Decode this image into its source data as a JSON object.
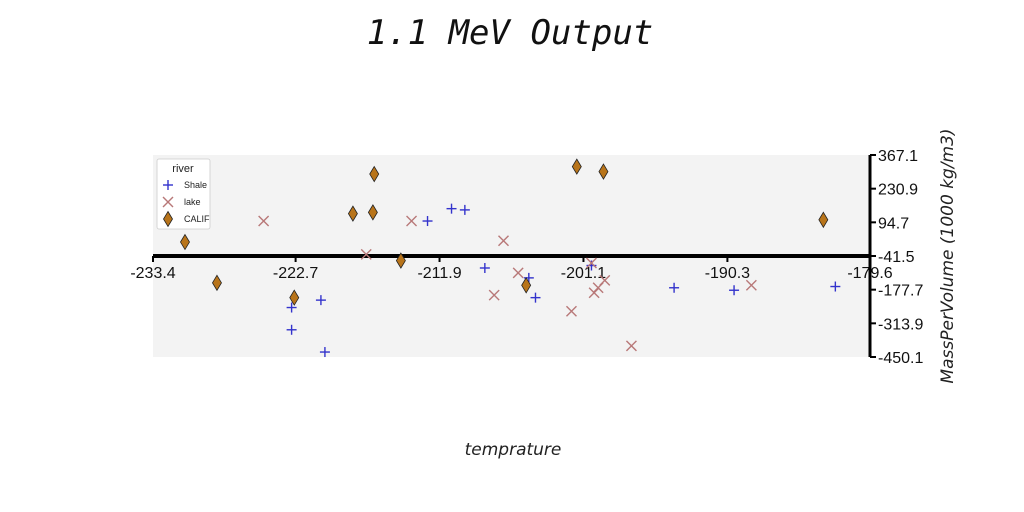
{
  "chart_data": {
    "type": "scatter",
    "title": "1.1 MeV Output",
    "xlabel": "temprature",
    "ylabel": "MassPerVolume (1000 kg/m3)",
    "xlim": [
      -233.4,
      -179.6
    ],
    "ylim": [
      -450.1,
      367.1
    ],
    "x_ticks": [
      "-233.4",
      "-222.7",
      "-211.9",
      "-201.1",
      "-190.3",
      "-179.6"
    ],
    "y_ticks": [
      "367.1",
      "230.9",
      "94.7",
      "-41.5",
      "-177.7",
      "-313.9",
      "-450.1"
    ],
    "grid": false,
    "legend": {
      "title": "river",
      "position": "top-left"
    },
    "colors": {
      "Shale": "#3333cc",
      "lake": "#b87878",
      "CALIF": "#b8741a",
      "background": "#f3f3f3"
    },
    "series": [
      {
        "name": "Shale",
        "marker": "plus",
        "points": [
          [
            -223.0,
            -250
          ],
          [
            -223.0,
            -340
          ],
          [
            -220.8,
            -220
          ],
          [
            -220.5,
            -430
          ],
          [
            -212.8,
            100
          ],
          [
            -211.0,
            150
          ],
          [
            -210.0,
            145
          ],
          [
            -208.5,
            -90
          ],
          [
            -205.2,
            -130
          ],
          [
            -204.7,
            -210
          ],
          [
            -200.5,
            -80
          ],
          [
            -194.3,
            -170
          ],
          [
            -189.8,
            -180
          ],
          [
            -182.2,
            -165
          ]
        ]
      },
      {
        "name": "lake",
        "marker": "x",
        "points": [
          [
            -225.1,
            100
          ],
          [
            -217.4,
            -35
          ],
          [
            -214.0,
            100
          ],
          [
            -207.8,
            -200
          ],
          [
            -207.1,
            20
          ],
          [
            -206.0,
            -110
          ],
          [
            -202.0,
            -265
          ],
          [
            -200.5,
            -70
          ],
          [
            -200.3,
            -190
          ],
          [
            -200.0,
            -170
          ],
          [
            -199.5,
            -140
          ],
          [
            -197.5,
            -405
          ],
          [
            -188.5,
            -160
          ]
        ]
      },
      {
        "name": "CALIF",
        "marker": "diamond",
        "points": [
          [
            -231.0,
            15
          ],
          [
            -228.6,
            -150
          ],
          [
            -222.8,
            -210
          ],
          [
            -218.4,
            130
          ],
          [
            -216.9,
            135
          ],
          [
            -216.8,
            290
          ],
          [
            -214.8,
            -60
          ],
          [
            -205.4,
            -160
          ],
          [
            -201.6,
            320
          ],
          [
            -199.6,
            300
          ],
          [
            -183.1,
            105
          ]
        ]
      }
    ]
  }
}
